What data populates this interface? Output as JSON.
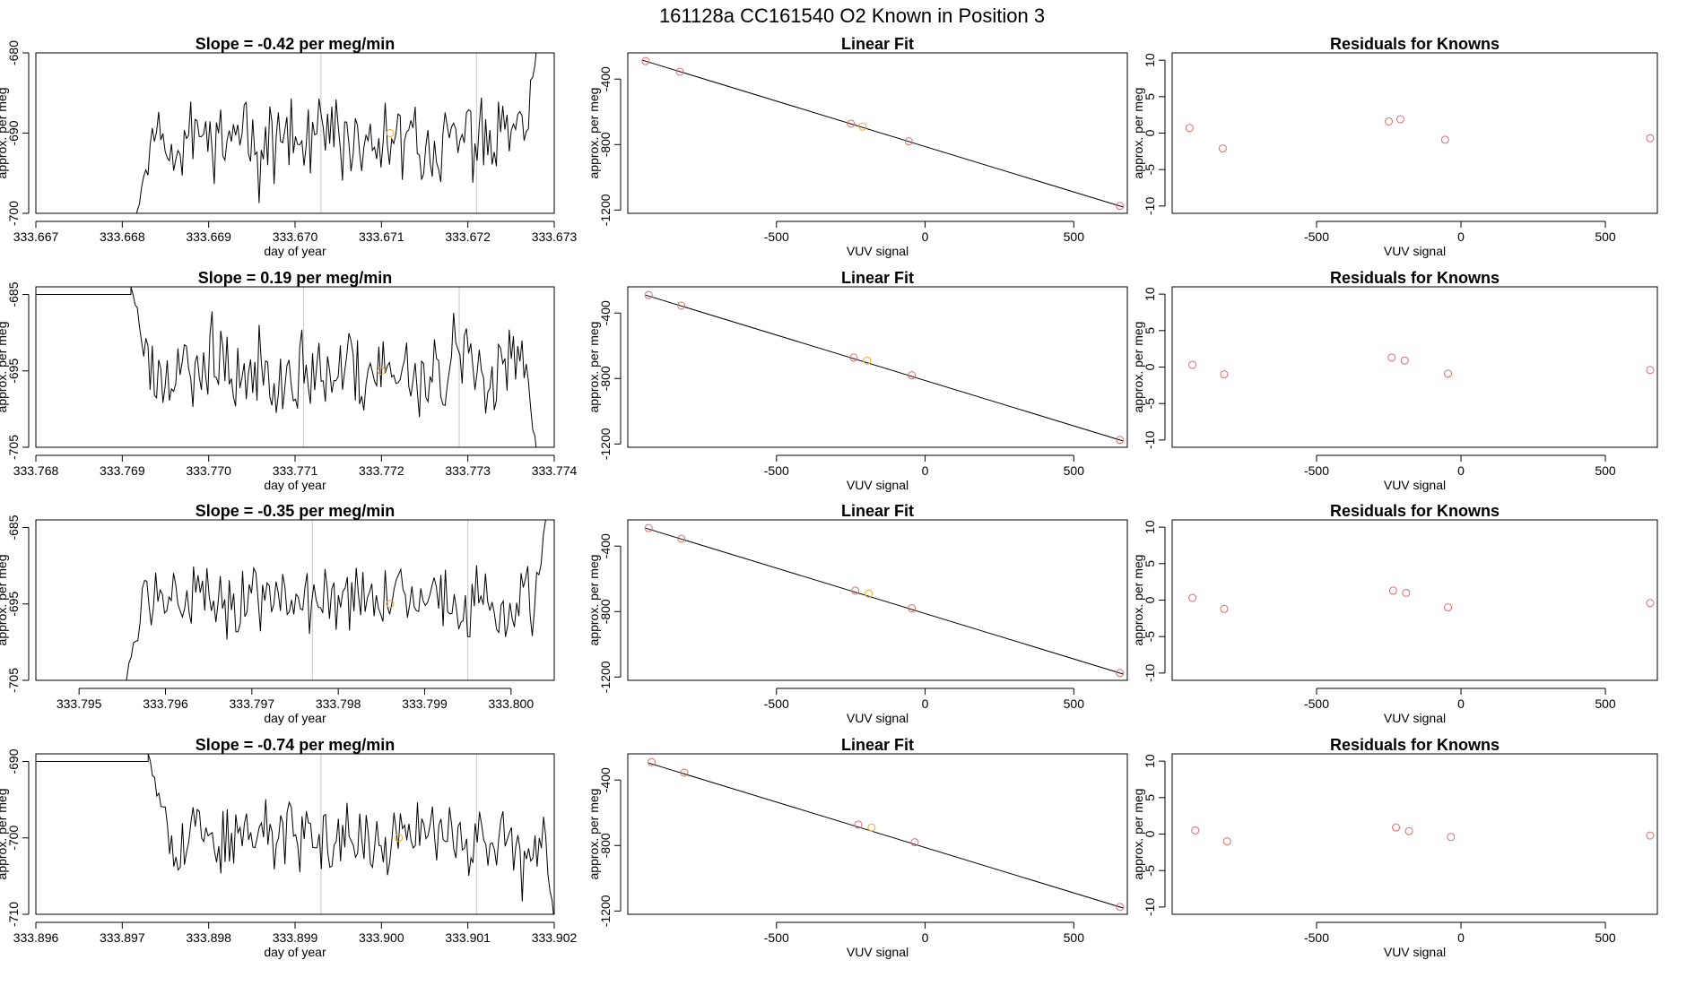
{
  "figure": {
    "title": "161128a      CC161540    O2 Known in Position  3"
  },
  "colors": {
    "trace": "#000000",
    "marker_fit": "#e06a6a",
    "marker_highlight": "#f0a830",
    "vline": "#c8c8c8"
  },
  "chart_data": [
    {
      "type": "line",
      "title": "Slope =  -0.42  per meg/min",
      "xlabel": "day of year",
      "ylabel": "approx. per meg",
      "xlim": [
        333.667,
        333.673
      ],
      "ylim": [
        -700,
        -680
      ],
      "xticks": [
        333.667,
        333.668,
        333.669,
        333.67,
        333.671,
        333.672,
        333.673
      ],
      "xtick_labels": [
        "333.667",
        "333.668",
        "333.669",
        "333.670",
        "333.671",
        "333.672",
        "333.673"
      ],
      "yticks": [
        -700,
        -690,
        -680
      ],
      "ytick_labels": [
        "-700",
        "-690",
        "-680"
      ],
      "vlines": [
        333.6703,
        333.6721
      ],
      "highlight": {
        "x": 333.6711,
        "y": -690
      },
      "trace": {
        "x0": 333.6681,
        "x1": 333.6728,
        "mean": -691,
        "amp": 3.5,
        "seed": 11,
        "start_y": -703,
        "end_y": -679
      }
    },
    {
      "type": "scatter",
      "title": "Linear Fit",
      "xlabel": "VUV signal",
      "ylabel": "approx. per meg",
      "xlim": [
        -1000,
        680
      ],
      "ylim": [
        -1220,
        -240
      ],
      "xticks": [
        -500,
        0,
        500
      ],
      "xtick_labels": [
        "-500",
        "0",
        "500"
      ],
      "yticks": [
        -1200,
        -800,
        -400
      ],
      "ytick_labels": [
        "-1200",
        "-800",
        "-400"
      ],
      "fit_line": {
        "slope": -0.555,
        "intercept": -812
      },
      "points": [
        [
          -940,
          -290
        ],
        [
          -825,
          -355
        ],
        [
          -250,
          -672
        ],
        [
          -210,
          -690
        ],
        [
          -55,
          -780
        ],
        [
          655,
          -1175
        ]
      ],
      "highlight_index": 3
    },
    {
      "type": "scatter",
      "title": "Residuals for Knowns",
      "xlabel": "VUV signal",
      "ylabel": "approx. per meg",
      "xlim": [
        -1000,
        680
      ],
      "ylim": [
        -11,
        11
      ],
      "xticks": [
        -500,
        0,
        500
      ],
      "xtick_labels": [
        "-500",
        "0",
        "500"
      ],
      "yticks": [
        -10,
        -5,
        0,
        5,
        10
      ],
      "ytick_labels": [
        "-10",
        "-5",
        "0",
        "5",
        "10"
      ],
      "points": [
        [
          -940,
          0.7
        ],
        [
          -825,
          -2.1
        ],
        [
          -250,
          1.6
        ],
        [
          -210,
          1.9
        ],
        [
          -55,
          -0.9
        ],
        [
          655,
          -0.7
        ]
      ]
    },
    {
      "type": "line",
      "title": "Slope =  0.19  per meg/min",
      "xlabel": "day of year",
      "ylabel": "approx. per meg",
      "xlim": [
        333.768,
        333.774
      ],
      "ylim": [
        -705,
        -684
      ],
      "xticks": [
        333.768,
        333.769,
        333.77,
        333.771,
        333.772,
        333.773,
        333.774
      ],
      "xtick_labels": [
        "333.768",
        "333.769",
        "333.770",
        "333.771",
        "333.772",
        "333.773",
        "333.774"
      ],
      "yticks": [
        -705,
        -695,
        -685
      ],
      "ytick_labels": [
        "-705",
        "-695",
        "-685"
      ],
      "vlines": [
        333.7711,
        333.7729
      ],
      "highlight": {
        "x": 333.772,
        "y": -695
      },
      "trace": {
        "x0": 333.7691,
        "x1": 333.7738,
        "mean": -695,
        "amp": 4,
        "seed": 23,
        "start_y": -684,
        "end_y": -706
      }
    },
    {
      "type": "scatter",
      "title": "Linear Fit",
      "xlabel": "VUV signal",
      "ylabel": "approx. per meg",
      "xlim": [
        -1000,
        680
      ],
      "ylim": [
        -1220,
        -240
      ],
      "xticks": [
        -500,
        0,
        500
      ],
      "xtick_labels": [
        "-500",
        "0",
        "500"
      ],
      "yticks": [
        -1200,
        -800,
        -400
      ],
      "ytick_labels": [
        "-1200",
        "-800",
        "-400"
      ],
      "fit_line": {
        "slope": -0.555,
        "intercept": -812
      },
      "points": [
        [
          -930,
          -290
        ],
        [
          -820,
          -355
        ],
        [
          -240,
          -672
        ],
        [
          -195,
          -690
        ],
        [
          -45,
          -780
        ],
        [
          655,
          -1175
        ]
      ],
      "highlight_index": 3
    },
    {
      "type": "scatter",
      "title": "Residuals for Knowns",
      "xlabel": "VUV signal",
      "ylabel": "approx. per meg",
      "xlim": [
        -1000,
        680
      ],
      "ylim": [
        -11,
        11
      ],
      "xticks": [
        -500,
        0,
        500
      ],
      "xtick_labels": [
        "-500",
        "0",
        "500"
      ],
      "yticks": [
        -10,
        -5,
        0,
        5,
        10
      ],
      "ytick_labels": [
        "-10",
        "-5",
        "0",
        "5",
        "10"
      ],
      "points": [
        [
          -930,
          0.3
        ],
        [
          -820,
          -1.0
        ],
        [
          -240,
          1.3
        ],
        [
          -195,
          0.9
        ],
        [
          -45,
          -0.9
        ],
        [
          655,
          -0.4
        ]
      ]
    },
    {
      "type": "line",
      "title": "Slope =  -0.35  per meg/min",
      "xlabel": "day of year",
      "ylabel": "approx. per meg",
      "xlim": [
        333.7945,
        333.8005
      ],
      "ylim": [
        -705,
        -684
      ],
      "xticks": [
        333.795,
        333.796,
        333.797,
        333.798,
        333.799,
        333.8
      ],
      "xtick_labels": [
        "333.795",
        "333.796",
        "333.797",
        "333.798",
        "333.799",
        "333.800"
      ],
      "yticks": [
        -705,
        -695,
        -685
      ],
      "ytick_labels": [
        "-705",
        "-695",
        "-685"
      ],
      "vlines": [
        333.7977,
        333.7995
      ],
      "highlight": {
        "x": 333.7986,
        "y": -695
      },
      "trace": {
        "x0": 333.7955,
        "x1": 333.8004,
        "mean": -694.5,
        "amp": 3.5,
        "seed": 37,
        "start_y": -707,
        "end_y": -684
      }
    },
    {
      "type": "scatter",
      "title": "Linear Fit",
      "xlabel": "VUV signal",
      "ylabel": "approx. per meg",
      "xlim": [
        -1000,
        680
      ],
      "ylim": [
        -1220,
        -240
      ],
      "xticks": [
        -500,
        0,
        500
      ],
      "xtick_labels": [
        "-500",
        "0",
        "500"
      ],
      "yticks": [
        -1200,
        -800,
        -400
      ],
      "ytick_labels": [
        "-1200",
        "-800",
        "-400"
      ],
      "fit_line": {
        "slope": -0.555,
        "intercept": -812
      },
      "points": [
        [
          -930,
          -290
        ],
        [
          -820,
          -355
        ],
        [
          -235,
          -672
        ],
        [
          -190,
          -690
        ],
        [
          -45,
          -780
        ],
        [
          655,
          -1175
        ]
      ],
      "highlight_index": 3
    },
    {
      "type": "scatter",
      "title": "Residuals for Knowns",
      "xlabel": "VUV signal",
      "ylabel": "approx. per meg",
      "xlim": [
        -1000,
        680
      ],
      "ylim": [
        -11,
        11
      ],
      "xticks": [
        -500,
        0,
        500
      ],
      "xtick_labels": [
        "-500",
        "0",
        "500"
      ],
      "yticks": [
        -10,
        -5,
        0,
        5,
        10
      ],
      "ytick_labels": [
        "-10",
        "-5",
        "0",
        "5",
        "10"
      ],
      "points": [
        [
          -930,
          0.3
        ],
        [
          -820,
          -1.2
        ],
        [
          -235,
          1.3
        ],
        [
          -190,
          1.0
        ],
        [
          -45,
          -1.0
        ],
        [
          655,
          -0.4
        ]
      ]
    },
    {
      "type": "line",
      "title": "Slope =  -0.74  per meg/min",
      "xlabel": "day of year",
      "ylabel": "approx. per meg",
      "xlim": [
        333.896,
        333.902
      ],
      "ylim": [
        -710,
        -689
      ],
      "xticks": [
        333.896,
        333.897,
        333.898,
        333.899,
        333.9,
        333.901,
        333.902
      ],
      "xtick_labels": [
        "333.896",
        "333.897",
        "333.898",
        "333.899",
        "333.900",
        "333.901",
        "333.902"
      ],
      "yticks": [
        -710,
        -700,
        -690
      ],
      "ytick_labels": [
        "-710",
        "-700",
        "-690"
      ],
      "vlines": [
        333.8993,
        333.9011
      ],
      "highlight": {
        "x": 333.9002,
        "y": -700
      },
      "trace": {
        "x0": 333.8973,
        "x1": 333.902,
        "mean": -700,
        "amp": 3.5,
        "seed": 53,
        "start_y": -689,
        "end_y": -711
      }
    },
    {
      "type": "scatter",
      "title": "Linear Fit",
      "xlabel": "VUV signal",
      "ylabel": "approx. per meg",
      "xlim": [
        -1000,
        680
      ],
      "ylim": [
        -1220,
        -240
      ],
      "xticks": [
        -500,
        0,
        500
      ],
      "xtick_labels": [
        "-500",
        "0",
        "500"
      ],
      "yticks": [
        -1200,
        -800,
        -400
      ],
      "ytick_labels": [
        "-1200",
        "-800",
        "-400"
      ],
      "fit_line": {
        "slope": -0.555,
        "intercept": -812
      },
      "points": [
        [
          -920,
          -290
        ],
        [
          -810,
          -355
        ],
        [
          -225,
          -672
        ],
        [
          -180,
          -690
        ],
        [
          -35,
          -780
        ],
        [
          655,
          -1175
        ]
      ],
      "highlight_index": 3
    },
    {
      "type": "scatter",
      "title": "Residuals for Knowns",
      "xlabel": "VUV signal",
      "ylabel": "approx. per meg",
      "xlim": [
        -1000,
        680
      ],
      "ylim": [
        -11,
        11
      ],
      "xticks": [
        -500,
        0,
        500
      ],
      "xtick_labels": [
        "-500",
        "0",
        "500"
      ],
      "yticks": [
        -10,
        -5,
        0,
        5,
        10
      ],
      "ytick_labels": [
        "-10",
        "-5",
        "0",
        "5",
        "10"
      ],
      "points": [
        [
          -920,
          0.5
        ],
        [
          -810,
          -1.0
        ],
        [
          -225,
          0.9
        ],
        [
          -180,
          0.4
        ],
        [
          -35,
          -0.4
        ],
        [
          655,
          -0.2
        ]
      ]
    }
  ]
}
